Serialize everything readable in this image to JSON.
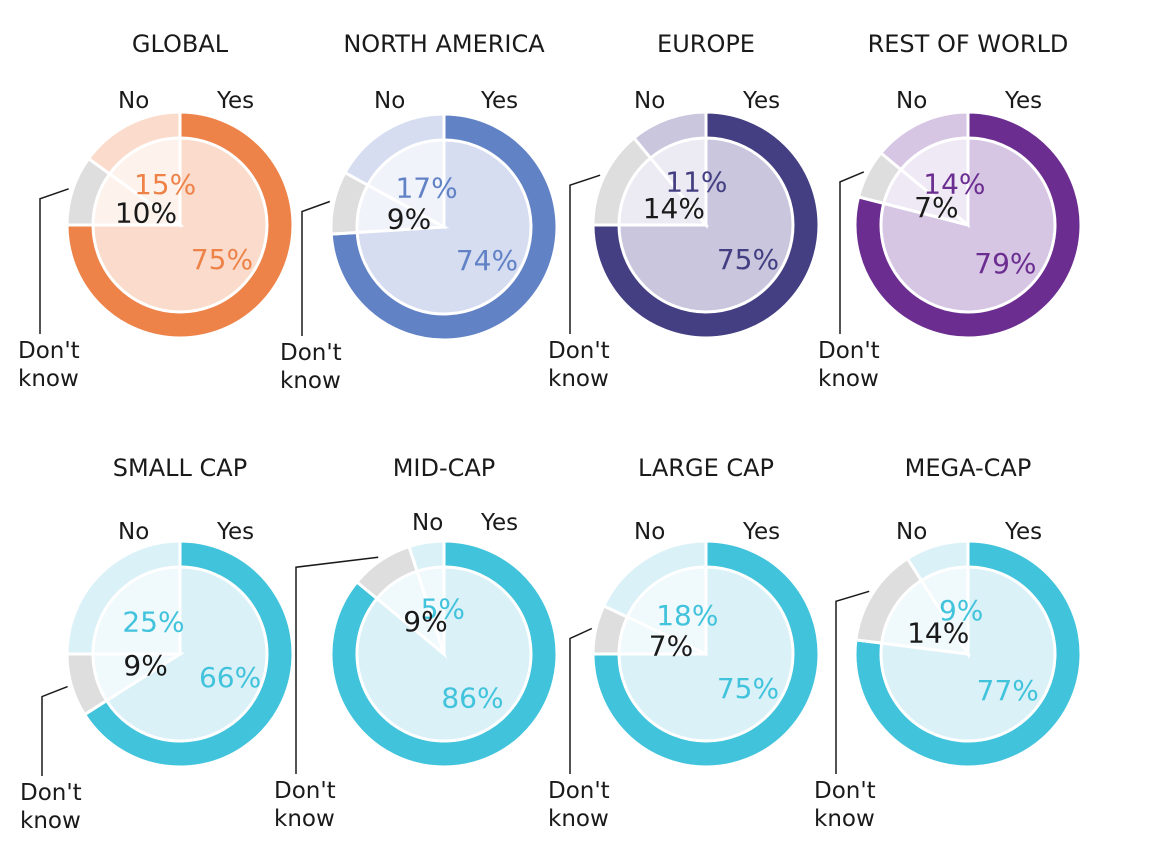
{
  "chart_data": [
    {
      "type": "pie",
      "title": "GLOBAL",
      "labels": {
        "yes": "Yes",
        "no": "No",
        "dk": "Don't know"
      },
      "values": {
        "yes": 75,
        "no": 15,
        "dk": 10
      },
      "value_labels": {
        "yes": "75%",
        "no": "15%",
        "dk": "10%"
      },
      "colors": {
        "main": "#ee834a",
        "light": "#fbdccc",
        "gray": "#dedede",
        "inner": "#fef3ec"
      }
    },
    {
      "type": "pie",
      "title": "NORTH AMERICA",
      "labels": {
        "yes": "Yes",
        "no": "No",
        "dk": "Don't know"
      },
      "values": {
        "yes": 74,
        "no": 17,
        "dk": 9
      },
      "value_labels": {
        "yes": "74%",
        "no": "17%",
        "dk": "9%"
      },
      "colors": {
        "main": "#6282c6",
        "light": "#d6ddf1",
        "gray": "#dedede",
        "inner": "#f1f3fa"
      }
    },
    {
      "type": "pie",
      "title": "EUROPE",
      "labels": {
        "yes": "Yes",
        "no": "No",
        "dk": "Don't know"
      },
      "values": {
        "yes": 75,
        "no": 11,
        "dk": 14
      },
      "value_labels": {
        "yes": "75%",
        "no": "11%",
        "dk": "14%"
      },
      "colors": {
        "main": "#433f82",
        "light": "#c9c6dd",
        "gray": "#dedede",
        "inner": "#ecebf3"
      }
    },
    {
      "type": "pie",
      "title": "REST OF WORLD",
      "labels": {
        "yes": "Yes",
        "no": "No",
        "dk": "Don't know"
      },
      "values": {
        "yes": 79,
        "no": 14,
        "dk": 7
      },
      "value_labels": {
        "yes": "79%",
        "no": "14%",
        "dk": "7%"
      },
      "colors": {
        "main": "#6c2d91",
        "light": "#d6c6e4",
        "gray": "#dedede",
        "inner": "#efe9f5"
      }
    },
    {
      "type": "pie",
      "title": "SMALL CAP",
      "labels": {
        "yes": "Yes",
        "no": "No",
        "dk": "Don't know"
      },
      "values": {
        "yes": 66,
        "no": 25,
        "dk": 9
      },
      "value_labels": {
        "yes": "66%",
        "no": "25%",
        "dk": "9%"
      },
      "colors": {
        "main": "#41c3dc",
        "light": "#dbf1f8",
        "gray": "#dedede",
        "inner": "#f0f9fc"
      }
    },
    {
      "type": "pie",
      "title": "MID-CAP",
      "labels": {
        "yes": "Yes",
        "no": "No",
        "dk": "Don't know"
      },
      "values": {
        "yes": 86,
        "no": 5,
        "dk": 9
      },
      "value_labels": {
        "yes": "86%",
        "no": "5%",
        "dk": "9%"
      },
      "colors": {
        "main": "#41c3dc",
        "light": "#dbf1f8",
        "gray": "#dedede",
        "inner": "#f0f9fc"
      }
    },
    {
      "type": "pie",
      "title": "LARGE CAP",
      "labels": {
        "yes": "Yes",
        "no": "No",
        "dk": "Don't know"
      },
      "values": {
        "yes": 75,
        "no": 18,
        "dk": 7
      },
      "value_labels": {
        "yes": "75%",
        "no": "18%",
        "dk": "7%"
      },
      "colors": {
        "main": "#41c3dc",
        "light": "#dbf1f8",
        "gray": "#dedede",
        "inner": "#f0f9fc"
      }
    },
    {
      "type": "pie",
      "title": "MEGA-CAP",
      "labels": {
        "yes": "Yes",
        "no": "No",
        "dk": "Don't know"
      },
      "values": {
        "yes": 77,
        "no": 9,
        "dk": 14
      },
      "value_labels": {
        "yes": "77%",
        "no": "9%",
        "dk": "14%"
      },
      "colors": {
        "main": "#41c3dc",
        "light": "#dbf1f8",
        "gray": "#dedede",
        "inner": "#f0f9fc"
      }
    }
  ]
}
